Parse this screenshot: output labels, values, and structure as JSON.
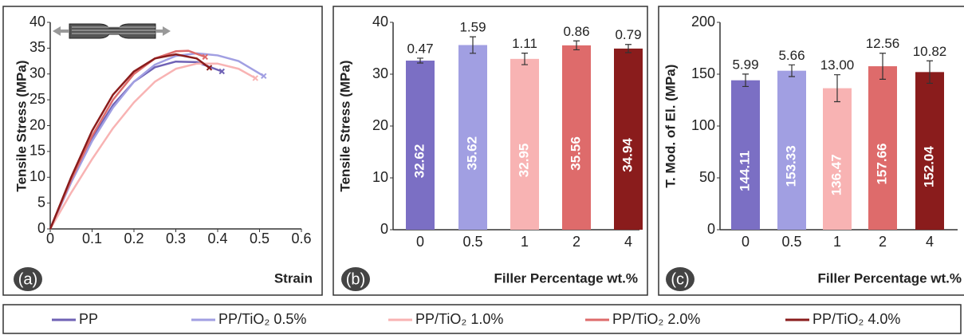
{
  "chart_data": [
    {
      "type": "line",
      "panel_label": "(a)",
      "xlabel": "Strain",
      "ylabel": "Tensile Stress (MPa)",
      "xlim": [
        0,
        0.6
      ],
      "xticks": [
        0,
        0.1,
        0.2,
        0.3,
        0.4,
        0.5,
        0.6
      ],
      "ylim": [
        0,
        40
      ],
      "yticks": [
        0,
        5,
        10,
        15,
        20,
        25,
        30,
        35,
        40
      ],
      "series": [
        {
          "name": "PP",
          "color": "#6f62b5",
          "x": [
            0,
            0.05,
            0.1,
            0.15,
            0.2,
            0.25,
            0.3,
            0.35,
            0.41
          ],
          "values": [
            0,
            9.5,
            17.5,
            24,
            28.5,
            31.3,
            32.4,
            32.3,
            30.5
          ]
        },
        {
          "name": "PP/TiO₂ 0.5%",
          "color": "#a19fe2",
          "x": [
            0,
            0.05,
            0.1,
            0.15,
            0.2,
            0.25,
            0.3,
            0.35,
            0.4,
            0.45,
            0.51
          ],
          "values": [
            0,
            9,
            17,
            23.5,
            28.5,
            31.8,
            33.5,
            34,
            33.6,
            32.5,
            29.6
          ]
        },
        {
          "name": "PP/TiO₂ 1.0%",
          "color": "#f8b3b3",
          "x": [
            0,
            0.05,
            0.1,
            0.15,
            0.2,
            0.25,
            0.3,
            0.35,
            0.4,
            0.45,
            0.49
          ],
          "values": [
            0,
            7,
            13.5,
            19.5,
            24.5,
            28.5,
            31,
            32,
            32,
            31,
            29.2
          ]
        },
        {
          "name": "PP/TiO₂ 2.0%",
          "color": "#de6b6b",
          "x": [
            0,
            0.05,
            0.1,
            0.15,
            0.2,
            0.25,
            0.3,
            0.33,
            0.37
          ],
          "values": [
            0,
            9.5,
            18,
            25,
            30,
            33,
            34.4,
            34.5,
            33.3
          ]
        },
        {
          "name": "PP/TiO₂ 4.0%",
          "color": "#8a1c1c",
          "x": [
            0,
            0.05,
            0.1,
            0.15,
            0.2,
            0.25,
            0.3,
            0.35,
            0.38
          ],
          "values": [
            0,
            10,
            19,
            26,
            30.5,
            33,
            33.8,
            33,
            31.2
          ]
        }
      ]
    },
    {
      "type": "bar",
      "panel_label": "(b)",
      "xlabel": "Filler Percentage wt.%",
      "ylabel": "Tensile Stress (MPa)",
      "categories": [
        "0",
        "0.5",
        "1",
        "2",
        "4"
      ],
      "values": [
        32.62,
        35.62,
        32.95,
        35.56,
        34.94
      ],
      "errors": [
        0.47,
        1.59,
        1.11,
        0.86,
        0.79
      ],
      "colors": [
        "#7b6fc4",
        "#a19fe2",
        "#f8b3b3",
        "#de6b6b",
        "#8a1c1c"
      ],
      "ylim": [
        0,
        40
      ],
      "yticks": [
        0,
        10,
        20,
        30,
        40
      ]
    },
    {
      "type": "bar",
      "panel_label": "(c)",
      "xlabel": "Filler Percentage wt.%",
      "ylabel": "T. Mod. of El. (MPa)",
      "categories": [
        "0",
        "0.5",
        "1",
        "2",
        "4"
      ],
      "values": [
        144.11,
        153.33,
        136.47,
        157.66,
        152.04
      ],
      "errors": [
        5.99,
        5.66,
        13,
        12.56,
        10.82
      ],
      "error_labels": [
        "5.99",
        "5.66",
        "13.00",
        "12.56",
        "10.82"
      ],
      "colors": [
        "#7b6fc4",
        "#a19fe2",
        "#f8b3b3",
        "#de6b6b",
        "#8a1c1c"
      ],
      "ylim": [
        0,
        200
      ],
      "yticks": [
        0,
        50,
        100,
        150,
        200
      ]
    }
  ]
}
